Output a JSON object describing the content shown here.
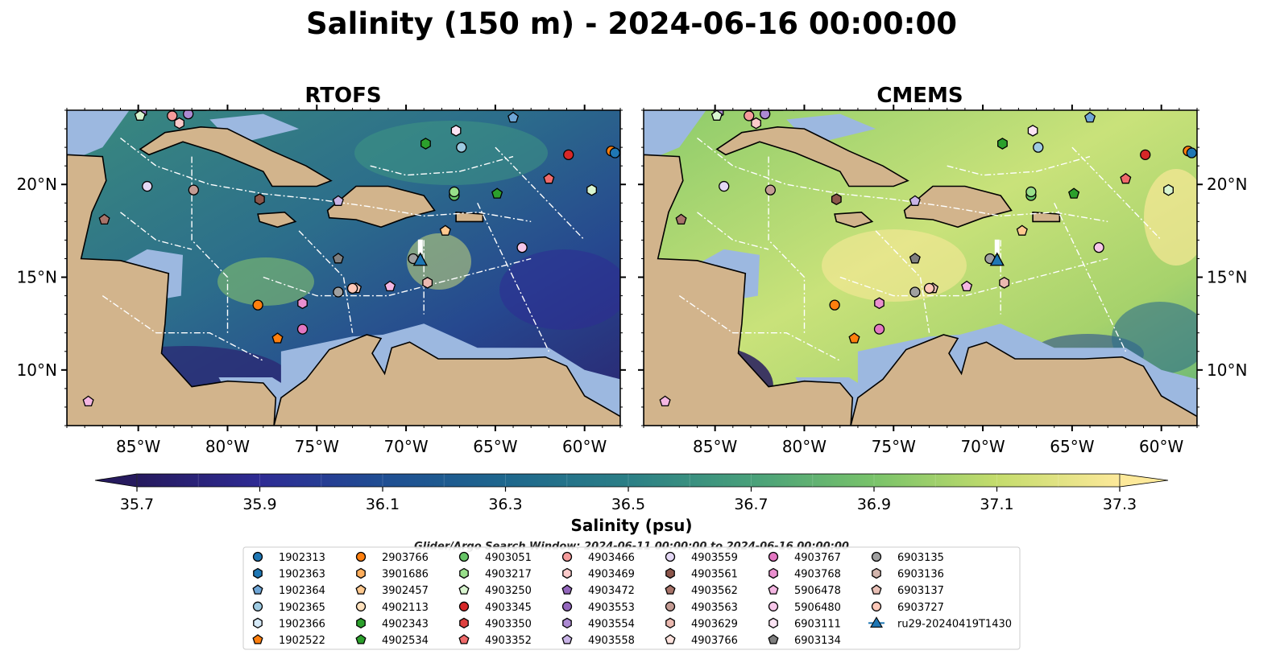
{
  "figure": {
    "title": "Salinity (150 m) - 2024-06-16 00:00:00",
    "colorbar_label": "Salinity (psu)",
    "colorbar_ticks": [
      "35.7",
      "35.9",
      "36.1",
      "36.3",
      "36.5",
      "36.7",
      "36.9",
      "37.1",
      "37.3"
    ],
    "search_window": "Glider/Argo Search Window: 2024-06-11 00:00:00 to 2024-06-16 00:00:00",
    "colors": {
      "land": "#d2b48c",
      "shelf": "#9cb8e0",
      "white_lines": "#ffffff"
    }
  },
  "chart_data": [
    {
      "type": "heatmap",
      "title": "RTOFS",
      "xlim": [
        -89,
        -58
      ],
      "ylim": [
        7,
        24
      ],
      "xticks": [
        "85°W",
        "80°W",
        "75°W",
        "70°W",
        "65°W",
        "60°W"
      ],
      "yticks": [
        "20°N",
        "15°N",
        "10°N"
      ],
      "value_range": [
        35.7,
        37.3
      ],
      "glider": {
        "name": "ru29-20240419T1430",
        "lon": -69.2,
        "lat": 15.9
      }
    },
    {
      "type": "heatmap",
      "title": "CMEMS",
      "xlim": [
        -89,
        -58
      ],
      "ylim": [
        7,
        24
      ],
      "xticks": [
        "85°W",
        "80°W",
        "75°W",
        "70°W",
        "65°W",
        "60°W"
      ],
      "yticks": [
        "20°N",
        "15°N",
        "10°N"
      ],
      "value_range": [
        35.7,
        37.3
      ],
      "glider": {
        "name": "ru29-20240419T1430",
        "lon": -69.2,
        "lat": 15.9
      }
    }
  ],
  "legend": [
    {
      "id": "1902313",
      "marker": "circle",
      "color": "#1f77b4"
    },
    {
      "id": "1902363",
      "marker": "hexagon",
      "color": "#1f77b4"
    },
    {
      "id": "1902364",
      "marker": "pentagon",
      "color": "#6fa6d6"
    },
    {
      "id": "1902365",
      "marker": "circle",
      "color": "#9ecae1"
    },
    {
      "id": "1902366",
      "marker": "hexagon",
      "color": "#d6eaf8"
    },
    {
      "id": "1902522",
      "marker": "pentagon",
      "color": "#ff7f0e"
    },
    {
      "id": "2903766",
      "marker": "circle",
      "color": "#ff7f0e"
    },
    {
      "id": "3901686",
      "marker": "hexagon",
      "color": "#ffae5c"
    },
    {
      "id": "3902457",
      "marker": "pentagon",
      "color": "#ffc98f"
    },
    {
      "id": "4902113",
      "marker": "circle",
      "color": "#ffe1bd"
    },
    {
      "id": "4902343",
      "marker": "hexagon",
      "color": "#2ca02c"
    },
    {
      "id": "4902534",
      "marker": "pentagon",
      "color": "#2ca02c"
    },
    {
      "id": "4903051",
      "marker": "circle",
      "color": "#66c466"
    },
    {
      "id": "4903217",
      "marker": "hexagon",
      "color": "#98df8a"
    },
    {
      "id": "4903250",
      "marker": "pentagon",
      "color": "#d9f5d0"
    },
    {
      "id": "4903345",
      "marker": "circle",
      "color": "#d62728"
    },
    {
      "id": "4903350",
      "marker": "hexagon",
      "color": "#e0413f"
    },
    {
      "id": "4903352",
      "marker": "pentagon",
      "color": "#f06a6a"
    },
    {
      "id": "4903466",
      "marker": "circle",
      "color": "#f59b9b"
    },
    {
      "id": "4903469",
      "marker": "hexagon",
      "color": "#fbcaca"
    },
    {
      "id": "4903472",
      "marker": "pentagon",
      "color": "#9467bd"
    },
    {
      "id": "4903553",
      "marker": "circle",
      "color": "#9467bd"
    },
    {
      "id": "4903554",
      "marker": "hexagon",
      "color": "#ad8ad3"
    },
    {
      "id": "4903558",
      "marker": "pentagon",
      "color": "#c8b3e6"
    },
    {
      "id": "4903559",
      "marker": "circle",
      "color": "#e4d8f5"
    },
    {
      "id": "4903561",
      "marker": "hexagon",
      "color": "#8c564b"
    },
    {
      "id": "4903562",
      "marker": "pentagon",
      "color": "#a8746a"
    },
    {
      "id": "4903563",
      "marker": "circle",
      "color": "#c49c94"
    },
    {
      "id": "4903629",
      "marker": "hexagon",
      "color": "#ebb9b0"
    },
    {
      "id": "4903766",
      "marker": "pentagon",
      "color": "#fde2dd"
    },
    {
      "id": "4903767",
      "marker": "circle",
      "color": "#e377c2"
    },
    {
      "id": "4903768",
      "marker": "hexagon",
      "color": "#ea8fcf"
    },
    {
      "id": "5906478",
      "marker": "pentagon",
      "color": "#f4b6e2"
    },
    {
      "id": "5906480",
      "marker": "circle",
      "color": "#f7c6e9"
    },
    {
      "id": "6903111",
      "marker": "hexagon",
      "color": "#fce4f4"
    },
    {
      "id": "6903134",
      "marker": "pentagon",
      "color": "#7f7f7f"
    },
    {
      "id": "6903135",
      "marker": "circle",
      "color": "#a0a0a0"
    },
    {
      "id": "6903136",
      "marker": "hexagon",
      "color": "#d3b5ad"
    },
    {
      "id": "6903137",
      "marker": "pentagon",
      "color": "#e9c0b6"
    },
    {
      "id": "6903727",
      "marker": "circle",
      "color": "#ffc8b8"
    },
    {
      "id": "ru29-20240419T1430",
      "marker": "triangle",
      "color": "#1f77b4",
      "line": true
    }
  ],
  "argo_points": [
    {
      "lon": -84.8,
      "lat": 23.9,
      "c": "#ad8ad3",
      "m": "hexagon"
    },
    {
      "lon": -84.9,
      "lat": 23.7,
      "c": "#d9f5d0",
      "m": "pentagon"
    },
    {
      "lon": -83.1,
      "lat": 23.7,
      "c": "#f59b9b",
      "m": "circle"
    },
    {
      "lon": -82.7,
      "lat": 23.3,
      "c": "#fbcaca",
      "m": "hexagon"
    },
    {
      "lon": -82.2,
      "lat": 23.8,
      "c": "#ad8ad3",
      "m": "circle"
    },
    {
      "lon": -64.0,
      "lat": 23.6,
      "c": "#6fa6d6",
      "m": "pentagon"
    },
    {
      "lon": -67.2,
      "lat": 22.9,
      "c": "#fce4f4",
      "m": "hexagon"
    },
    {
      "lon": -66.9,
      "lat": 22.0,
      "c": "#9ecae1",
      "m": "circle"
    },
    {
      "lon": -68.9,
      "lat": 22.2,
      "c": "#2ca02c",
      "m": "hexagon"
    },
    {
      "lon": -60.9,
      "lat": 21.6,
      "c": "#d62728",
      "m": "circle"
    },
    {
      "lon": -58.5,
      "lat": 21.8,
      "c": "#ff7f0e",
      "m": "circle"
    },
    {
      "lon": -58.3,
      "lat": 21.7,
      "c": "#1f77b4",
      "m": "circle"
    },
    {
      "lon": -62.0,
      "lat": 20.3,
      "c": "#f06a6a",
      "m": "pentagon"
    },
    {
      "lon": -59.6,
      "lat": 19.7,
      "c": "#d9f5d0",
      "m": "hexagon"
    },
    {
      "lon": -64.9,
      "lat": 19.5,
      "c": "#2ca02c",
      "m": "pentagon"
    },
    {
      "lon": -67.3,
      "lat": 19.4,
      "c": "#66c466",
      "m": "circle"
    },
    {
      "lon": -67.3,
      "lat": 19.6,
      "c": "#98df8a",
      "m": "circle"
    },
    {
      "lon": -73.8,
      "lat": 19.1,
      "c": "#c8b3e6",
      "m": "pentagon"
    },
    {
      "lon": -78.2,
      "lat": 19.2,
      "c": "#8c564b",
      "m": "hexagon"
    },
    {
      "lon": -81.9,
      "lat": 19.7,
      "c": "#c49c94",
      "m": "circle"
    },
    {
      "lon": -84.5,
      "lat": 19.9,
      "c": "#e4d8f5",
      "m": "circle"
    },
    {
      "lon": -86.9,
      "lat": 18.1,
      "c": "#a8746a",
      "m": "pentagon"
    },
    {
      "lon": -67.8,
      "lat": 17.5,
      "c": "#ffc98f",
      "m": "pentagon"
    },
    {
      "lon": -63.5,
      "lat": 16.6,
      "c": "#f7c6e9",
      "m": "circle"
    },
    {
      "lon": -73.8,
      "lat": 16.0,
      "c": "#7f7f7f",
      "m": "pentagon"
    },
    {
      "lon": -69.6,
      "lat": 16.0,
      "c": "#a0a0a0",
      "m": "circle"
    },
    {
      "lon": -68.8,
      "lat": 14.7,
      "c": "#ebb9b0",
      "m": "hexagon"
    },
    {
      "lon": -70.9,
      "lat": 14.5,
      "c": "#f4b6e2",
      "m": "pentagon"
    },
    {
      "lon": -72.8,
      "lat": 14.4,
      "c": "#e9c0b6",
      "m": "pentagon"
    },
    {
      "lon": -73.0,
      "lat": 14.4,
      "c": "#ffc8b8",
      "m": "circle"
    },
    {
      "lon": -73.8,
      "lat": 14.2,
      "c": "#a0a0a0",
      "m": "circle"
    },
    {
      "lon": -75.8,
      "lat": 13.6,
      "c": "#ea8fcf",
      "m": "hexagon"
    },
    {
      "lon": -78.3,
      "lat": 13.5,
      "c": "#ff7f0e",
      "m": "circle"
    },
    {
      "lon": -75.8,
      "lat": 12.2,
      "c": "#e377c2",
      "m": "circle"
    },
    {
      "lon": -77.2,
      "lat": 11.7,
      "c": "#ff7f0e",
      "m": "pentagon"
    },
    {
      "lon": -87.8,
      "lat": 8.3,
      "c": "#f4b6e2",
      "m": "pentagon"
    }
  ]
}
